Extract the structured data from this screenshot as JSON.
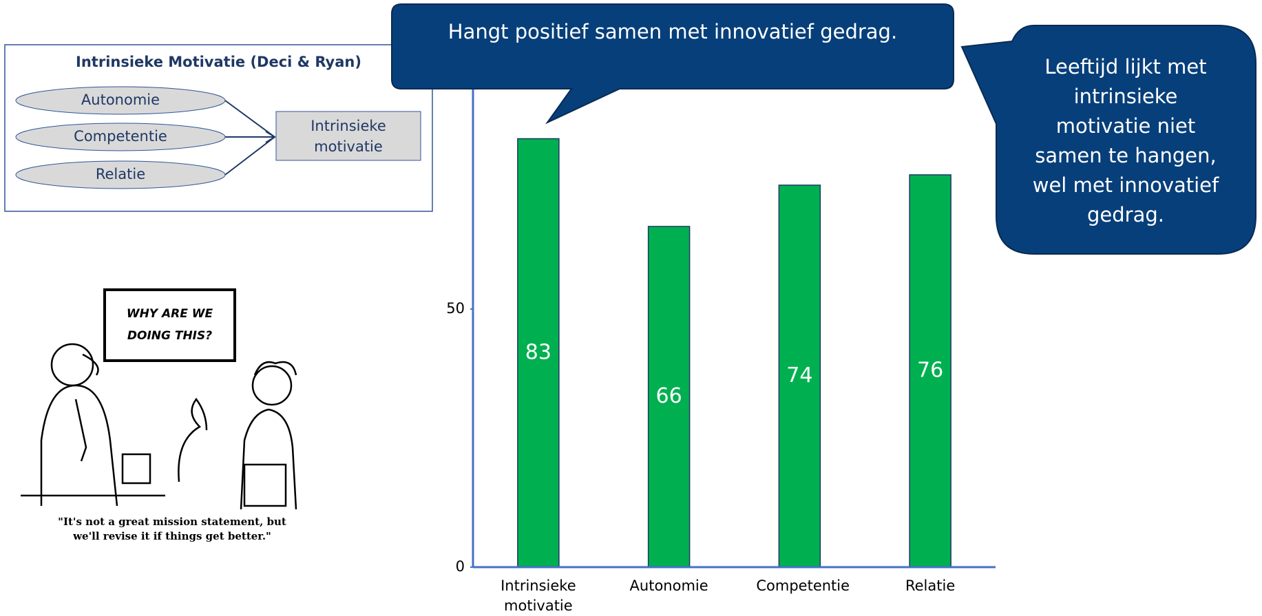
{
  "chart_data": {
    "type": "bar",
    "categories": [
      "Intrinsieke motivatie",
      "Autonomie",
      "Competentie",
      "Relatie"
    ],
    "values": [
      83,
      66,
      74,
      76
    ],
    "color": "#00b050",
    "ylim": [
      0,
      100
    ],
    "yticks": [
      0,
      50
    ]
  },
  "diagram": {
    "title": "Intrinsieke Motivatie (Deci & Ryan)",
    "inputs": [
      "Autonomie",
      "Competentie",
      "Relatie"
    ],
    "output": "Intrinsieke motivatie"
  },
  "callouts": [
    "Hangt positief samen met innovatief gedrag.",
    "Leeftijd lijkt met intrinsieke motivatie niet samen te hangen, wel met innovatief gedrag."
  ],
  "cartoon": {
    "sign": "WHY ARE WE DOING THIS?",
    "caption": "\"It's not a great mission statement, but we'll revise it if things get better.\""
  }
}
